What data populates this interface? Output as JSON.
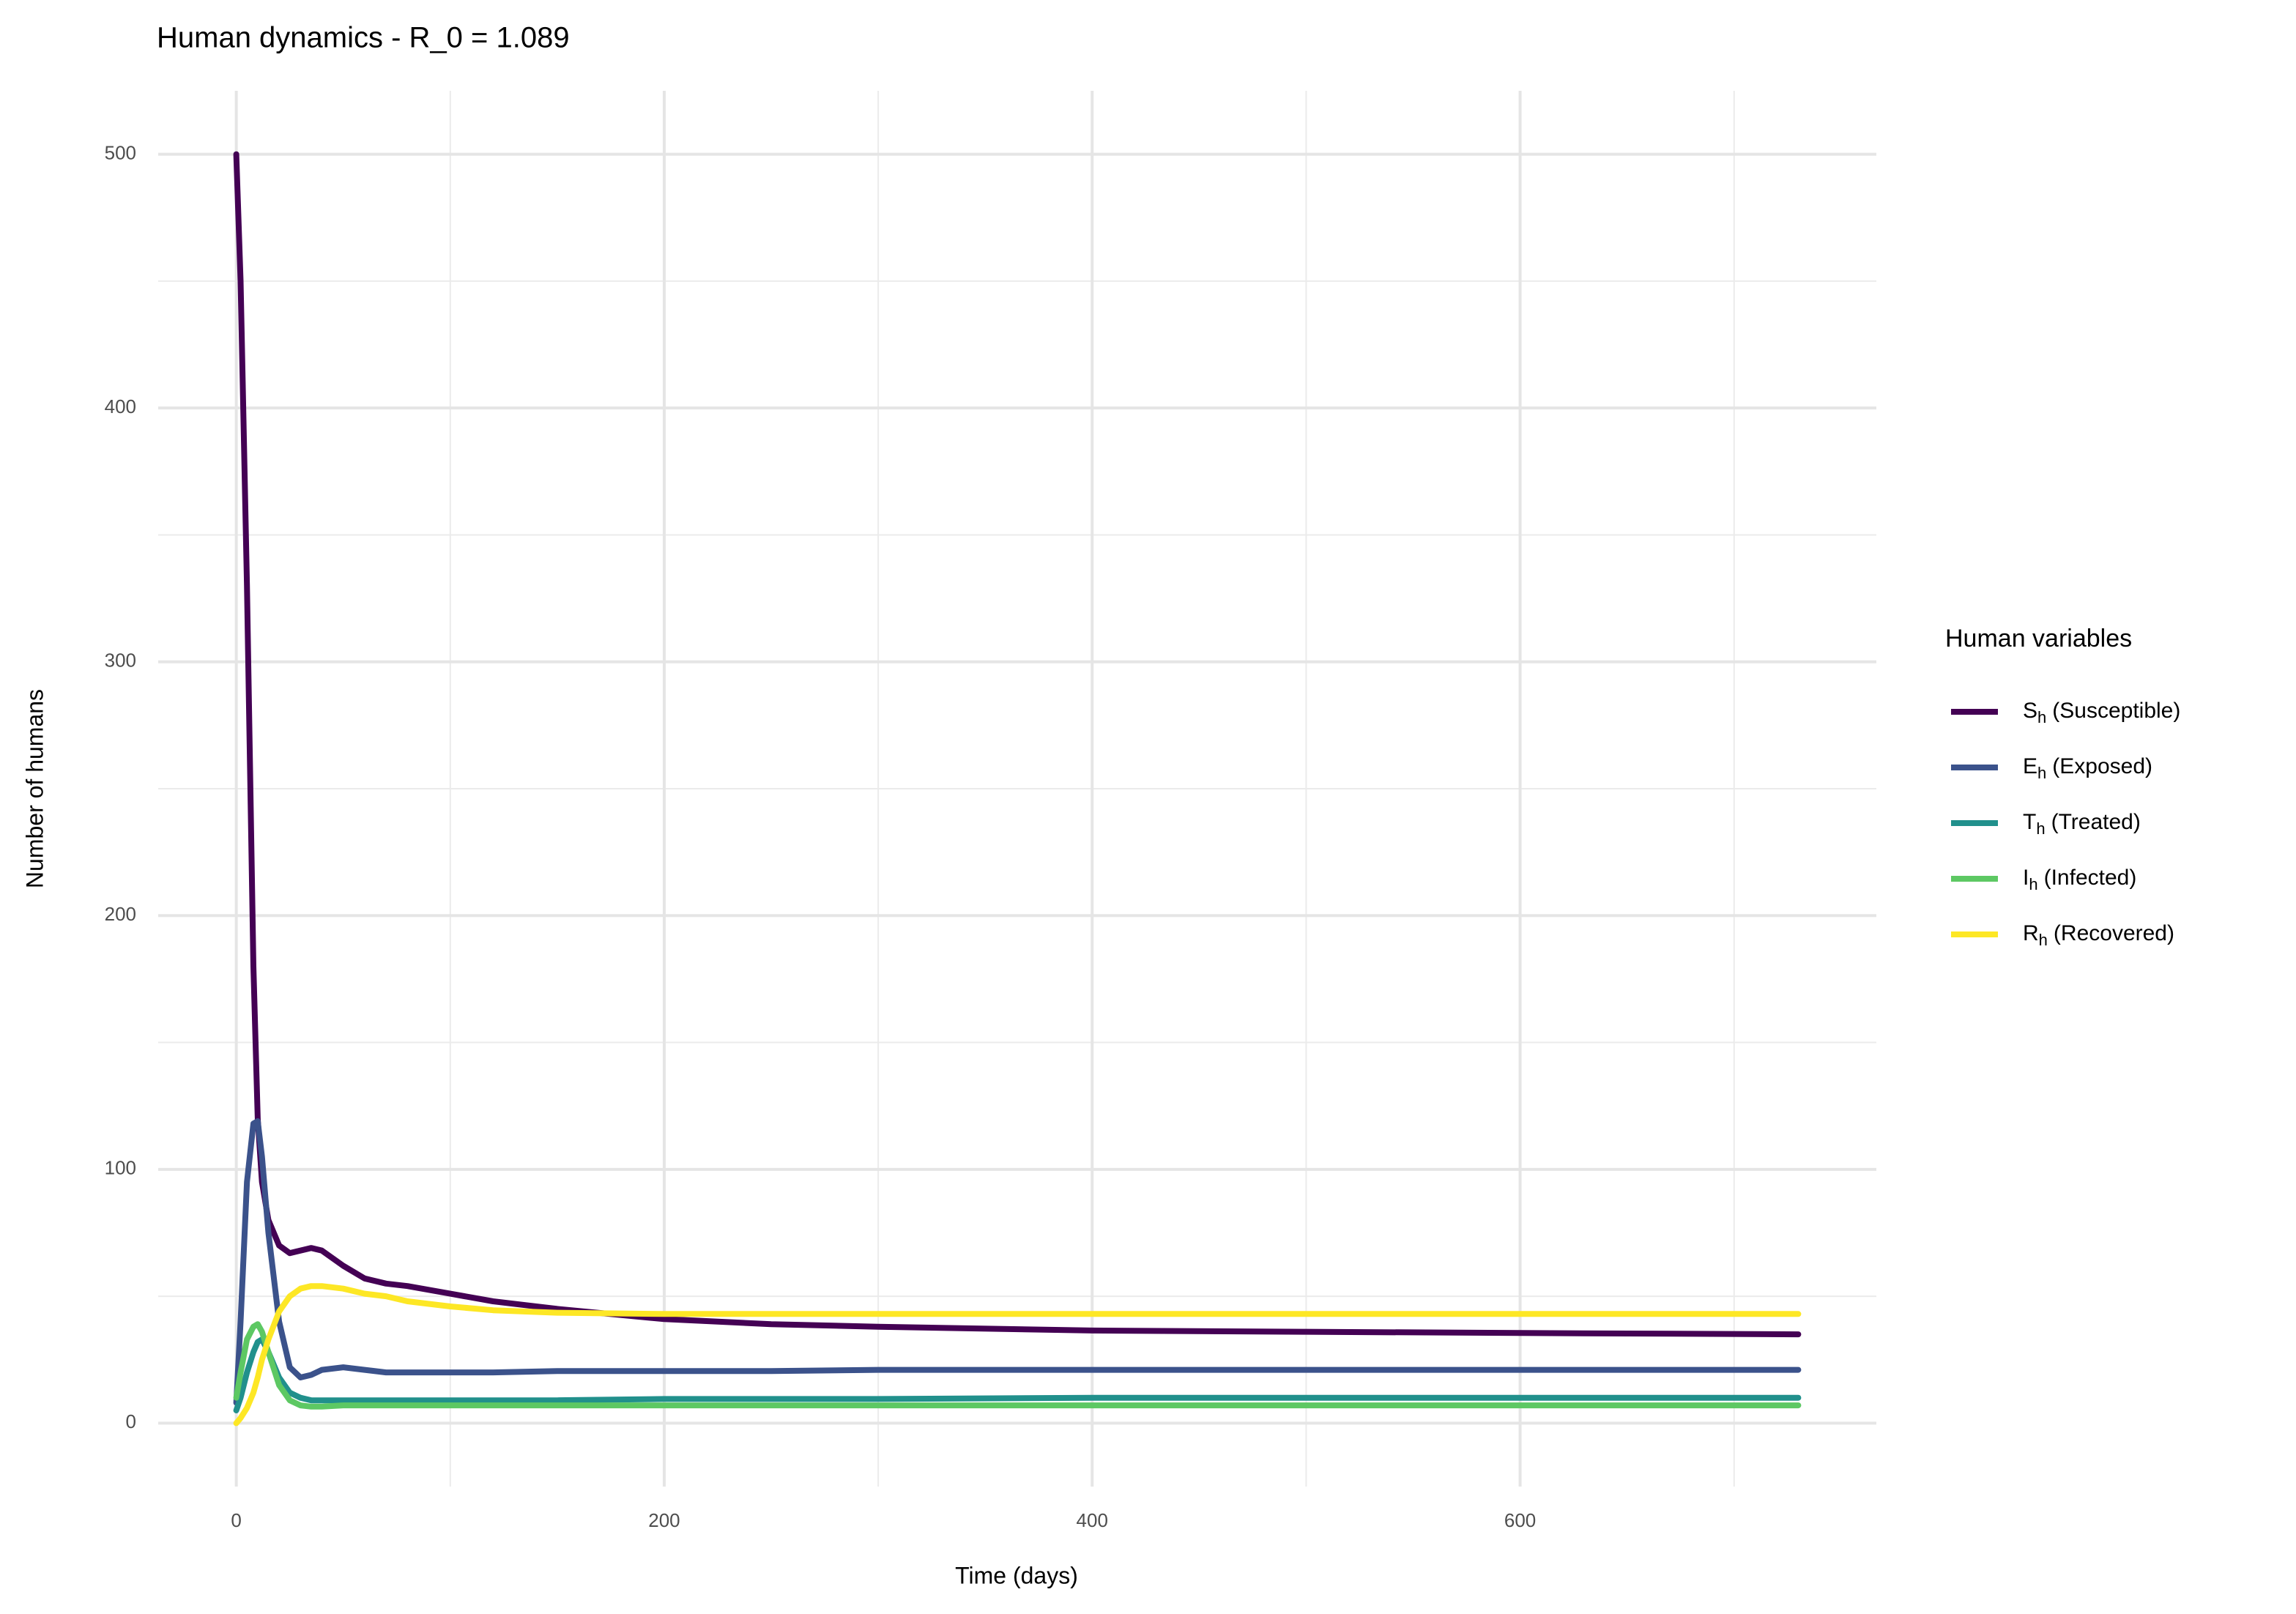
{
  "chart_data": {
    "type": "line",
    "title": "Human dynamics - R_0 = 1.089",
    "x_label": "Time (days)",
    "y_label": "Number of humans",
    "legend_title": "Human variables",
    "legend_position": "right",
    "x": [
      0,
      2,
      5,
      8,
      10,
      12,
      15,
      20,
      25,
      30,
      35,
      40,
      50,
      60,
      70,
      80,
      100,
      120,
      150,
      200,
      250,
      300,
      400,
      500,
      600,
      730
    ],
    "series": [
      {
        "symbol": "S",
        "subscript": "h",
        "name": "(Susceptible)",
        "color": "#440154",
        "values": [
          500,
          450,
          330,
          180,
          120,
          95,
          80,
          70,
          67,
          68,
          69,
          68,
          62,
          57,
          55,
          54,
          51,
          48,
          45,
          41,
          39,
          38,
          36.5,
          36,
          35.5,
          35
        ]
      },
      {
        "symbol": "E",
        "subscript": "h",
        "name": "(Exposed)",
        "color": "#3b528b",
        "values": [
          8,
          40,
          95,
          118,
          119,
          105,
          75,
          40,
          22,
          18,
          19,
          21,
          22,
          21,
          20,
          20,
          20,
          20,
          20.5,
          20.5,
          20.5,
          21,
          21,
          21,
          21,
          21
        ]
      },
      {
        "symbol": "T",
        "subscript": "h",
        "name": "(Treated)",
        "color": "#21908c",
        "values": [
          5,
          10,
          20,
          28,
          32,
          33,
          28,
          18,
          12,
          10,
          9,
          9,
          9,
          9,
          9,
          9,
          9,
          9,
          9,
          9.5,
          9.5,
          9.5,
          10,
          10,
          10,
          10
        ]
      },
      {
        "symbol": "I",
        "subscript": "h",
        "name": "(Infected)",
        "color": "#5dc863",
        "values": [
          10,
          20,
          33,
          38,
          39,
          36,
          28,
          15,
          9,
          7,
          6.5,
          6.5,
          7,
          7,
          7,
          7,
          7,
          7,
          7,
          7,
          7,
          7,
          7,
          7,
          7,
          7
        ]
      },
      {
        "symbol": "R",
        "subscript": "h",
        "name": "(Recovered)",
        "color": "#fde725",
        "values": [
          0,
          2,
          6,
          12,
          18,
          25,
          33,
          44,
          50,
          53,
          54,
          54,
          53,
          51,
          50,
          48,
          46,
          44.5,
          43.5,
          43,
          43,
          43,
          43,
          43,
          43,
          43
        ]
      }
    ],
    "xlim": [
      -36.5,
      766.5
    ],
    "ylim": [
      -25,
      525
    ],
    "xticks": [
      0,
      200,
      400,
      600
    ],
    "yticks": [
      0,
      100,
      200,
      300,
      400,
      500
    ],
    "x_minor_ticks": [
      100,
      300,
      500,
      700
    ],
    "y_minor_ticks": [
      50,
      150,
      250,
      350,
      450
    ],
    "grid": true
  }
}
